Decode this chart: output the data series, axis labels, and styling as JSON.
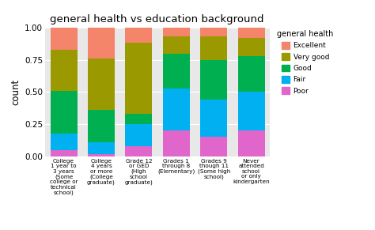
{
  "title": "general health vs education background",
  "ylabel": "count",
  "categories": [
    "College\n1 year to\n3 years\n(Some\ncollege or\ntechnical\nschool)",
    "College\n4 years\nor more\n(College\ngraduate)",
    "Grade 12\nor GED\n(High\nschool\ngraduate)",
    "Grades 1\nthrough 8\n(Elementary)",
    "Grades 9\nthough 11\n(Some high\nschool)",
    "Never\nattended\nschool\nor only\nkindergarten"
  ],
  "health_labels": [
    "Poor",
    "Fair",
    "Good",
    "Very good",
    "Excellent"
  ],
  "data": {
    "Poor": [
      0.05,
      0.02,
      0.08,
      0.2,
      0.15,
      0.2
    ],
    "Fair": [
      0.13,
      0.09,
      0.17,
      0.33,
      0.29,
      0.3
    ],
    "Good": [
      0.33,
      0.25,
      0.08,
      0.27,
      0.31,
      0.28
    ],
    "Very good": [
      0.32,
      0.4,
      0.55,
      0.13,
      0.18,
      0.14
    ],
    "Excellent": [
      0.17,
      0.24,
      0.12,
      0.07,
      0.07,
      0.08
    ]
  },
  "bg_color": "#E8E8E8",
  "ylim": [
    0,
    1.0
  ],
  "yticks": [
    0.0,
    0.25,
    0.5,
    0.75,
    1.0
  ],
  "legend_title": "general health",
  "legend_order": [
    "Excellent",
    "Very good",
    "Good",
    "Fair",
    "Poor"
  ],
  "legend_colors": {
    "Excellent": "#F4846A",
    "Very good": "#9A9A00",
    "Good": "#00B050",
    "Fair": "#00B0F0",
    "Poor": "#E066CC"
  }
}
